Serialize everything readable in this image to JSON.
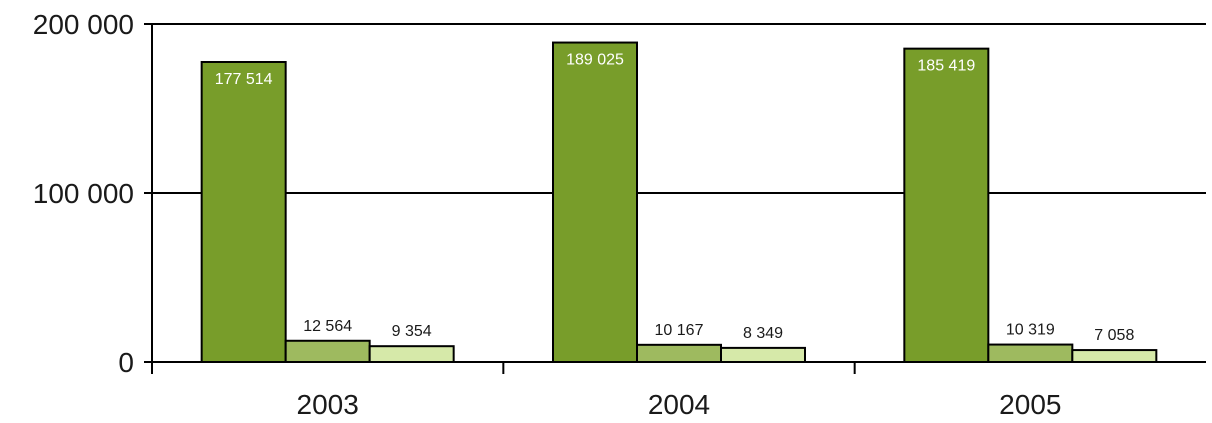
{
  "chart_data": {
    "type": "bar",
    "categories": [
      "2003",
      "2004",
      "2005"
    ],
    "series": [
      {
        "values": [
          177514,
          189025,
          185419
        ],
        "labels": [
          "177 514",
          "189 025",
          "185 419"
        ],
        "color": "#789d2a"
      },
      {
        "values": [
          12564,
          10167,
          10319
        ],
        "labels": [
          "12 564",
          "10 167",
          "10 319"
        ],
        "color": "#9eba5f"
      },
      {
        "values": [
          9354,
          8349,
          7058
        ],
        "labels": [
          "9 354",
          "8 349",
          "7 058"
        ],
        "color": "#d6e9a9"
      }
    ],
    "yticks": [
      {
        "value": 0,
        "label": "0"
      },
      {
        "value": 100000,
        "label": "100 000"
      },
      {
        "value": 200000,
        "label": "200 000"
      }
    ],
    "ylim": [
      0,
      200000
    ],
    "grid": true,
    "legend": "none",
    "title": "",
    "xlabel": "",
    "ylabel": ""
  }
}
